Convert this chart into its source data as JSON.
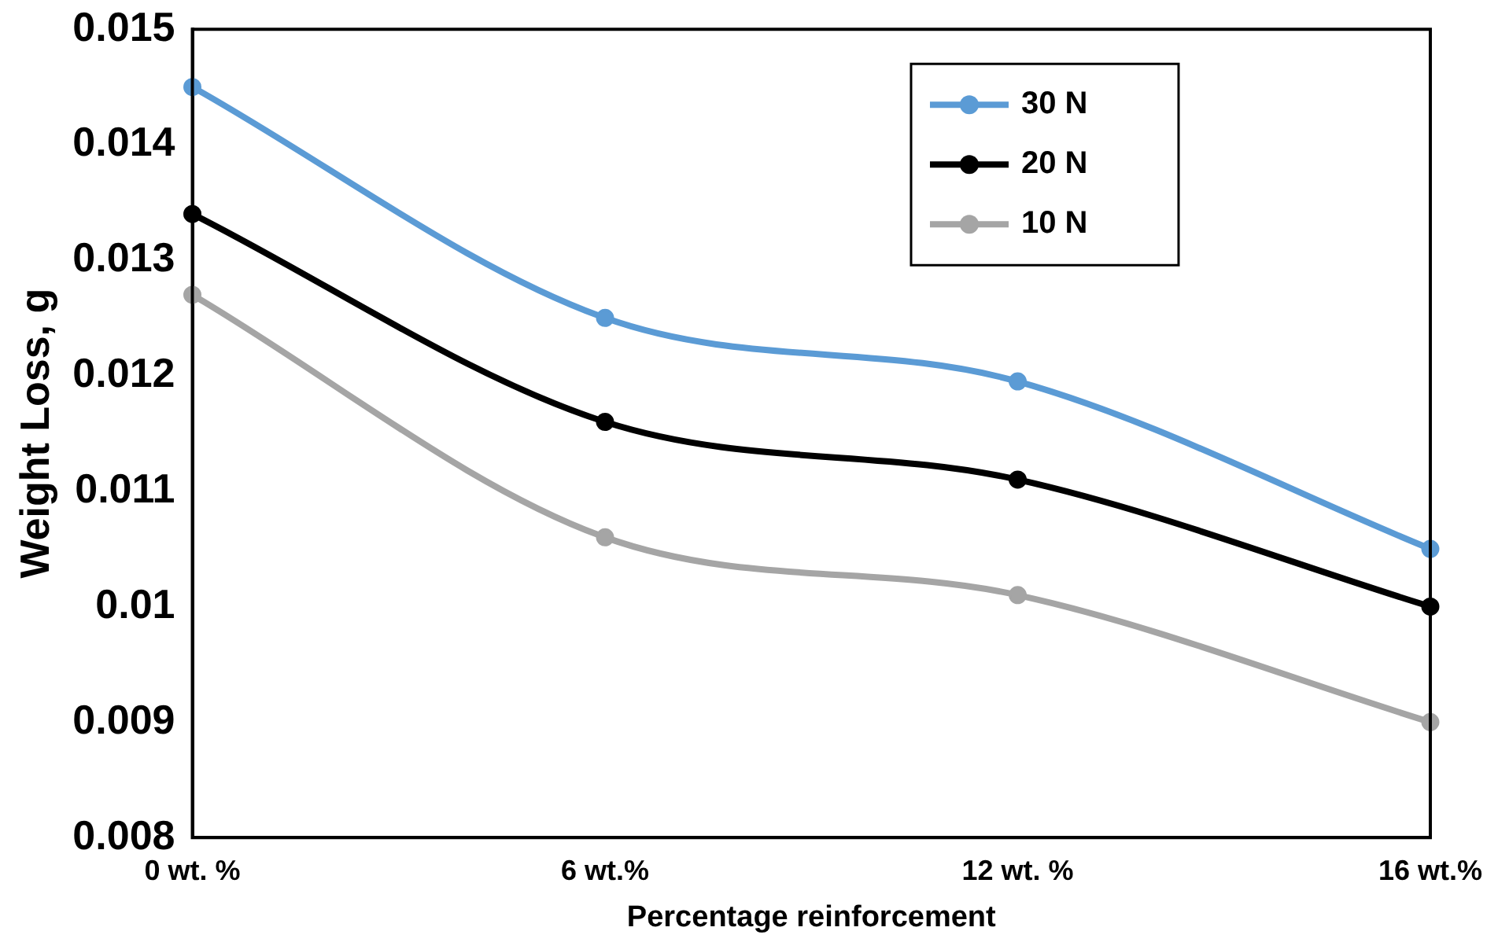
{
  "chart_data": {
    "type": "line",
    "xlabel": "Percentage reinforcement",
    "ylabel": "Weight Loss, g",
    "categories": [
      "0 wt. %",
      "6 wt.%",
      "12 wt. %",
      "16 wt.%"
    ],
    "series": [
      {
        "name": "30 N",
        "color": "#5b9bd5",
        "values": [
          0.0145,
          0.0125,
          0.01195,
          0.0105
        ]
      },
      {
        "name": "20 N",
        "color": "#000000",
        "values": [
          0.0134,
          0.0116,
          0.0111,
          0.01
        ]
      },
      {
        "name": "10 N",
        "color": "#a5a5a5",
        "values": [
          0.0127,
          0.0106,
          0.0101,
          0.009
        ]
      }
    ],
    "ylim": [
      0.008,
      0.015
    ],
    "yticks": [
      {
        "value": 0.008,
        "label": "0.008"
      },
      {
        "value": 0.009,
        "label": "0.009"
      },
      {
        "value": 0.01,
        "label": "0.01"
      },
      {
        "value": 0.011,
        "label": "0.011"
      },
      {
        "value": 0.012,
        "label": "0.012"
      },
      {
        "value": 0.013,
        "label": "0.013"
      },
      {
        "value": 0.014,
        "label": "0.014"
      },
      {
        "value": 0.015,
        "label": "0.015"
      }
    ],
    "grid": false,
    "legend": "top right",
    "marker": "circle",
    "line_style": "solid"
  }
}
